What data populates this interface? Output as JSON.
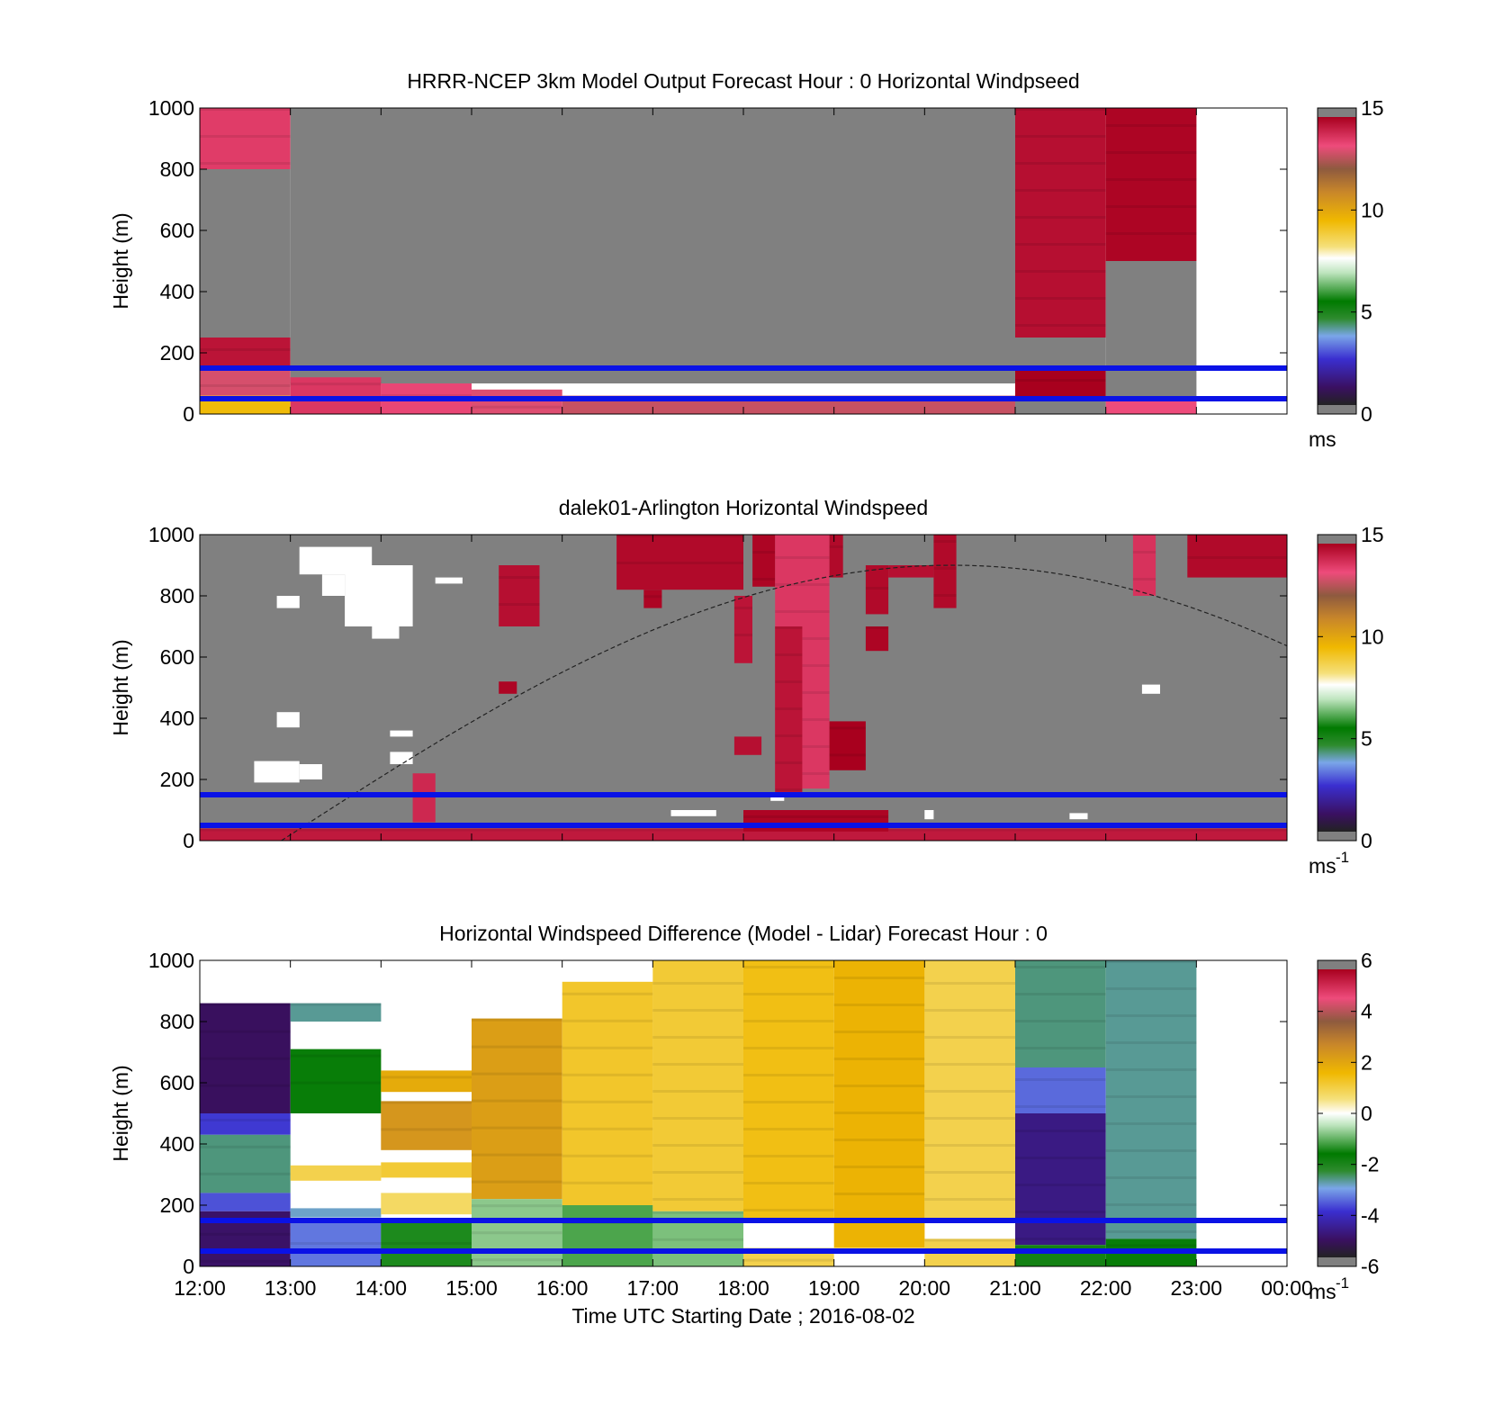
{
  "chart_data": [
    {
      "type": "heatmap",
      "title": "HRRR-NCEP 3km Model Output   Forecast Hour : 0 Horizontal Windpseed",
      "ylabel": "Height (m)",
      "xlabel": "",
      "ylim": [
        0,
        1000
      ],
      "yticks": [
        "0",
        "200",
        "400",
        "600",
        "800",
        "1000"
      ],
      "xlim_hours": [
        12,
        24
      ],
      "colorbar": {
        "min": 0,
        "max": 15,
        "ticks": [
          "0",
          "5",
          "10",
          "15"
        ],
        "unit": "ms",
        "unit_sup": "",
        "palette": "speed"
      },
      "reference_lines_m": [
        150,
        50
      ],
      "blocks": [
        {
          "x0": 12,
          "x1": 13,
          "y0": 800,
          "y1": 1000,
          "v": 13.8
        },
        {
          "x0": 12,
          "x1": 13,
          "y0": 250,
          "y1": 800,
          "v": null
        },
        {
          "x0": 12,
          "x1": 13,
          "y0": 150,
          "y1": 250,
          "v": 14.6
        },
        {
          "x0": 12,
          "x1": 13,
          "y0": 60,
          "y1": 150,
          "v": 13.2
        },
        {
          "x0": 12,
          "x1": 13,
          "y0": 0,
          "y1": 60,
          "v": 9.5
        },
        {
          "x0": 13,
          "x1": 21,
          "y0": 100,
          "y1": 1000,
          "v": null
        },
        {
          "x0": 13,
          "x1": 14,
          "y0": 0,
          "y1": 120,
          "v": 13.9
        },
        {
          "x0": 14,
          "x1": 15,
          "y0": 0,
          "y1": 100,
          "v": 13.6
        },
        {
          "x0": 15,
          "x1": 16,
          "y0": 0,
          "y1": 80,
          "v": 13.3
        },
        {
          "x0": 16,
          "x1": 21,
          "y0": 0,
          "y1": 60,
          "v": 13.0
        },
        {
          "x0": 21,
          "x1": 22,
          "y0": 250,
          "y1": 1000,
          "v": 14.7
        },
        {
          "x0": 21,
          "x1": 22,
          "y0": 0,
          "y1": 250,
          "v": null
        },
        {
          "x0": 21,
          "x1": 22,
          "y0": 50,
          "y1": 150,
          "v": 15
        },
        {
          "x0": 22,
          "x1": 23,
          "y0": 500,
          "y1": 1000,
          "v": 14.9
        },
        {
          "x0": 22,
          "x1": 23,
          "y0": 0,
          "y1": 500,
          "v": null
        },
        {
          "x0": 22,
          "x1": 23,
          "y0": 0,
          "y1": 50,
          "v": 13.5
        }
      ]
    },
    {
      "type": "heatmap",
      "title": "dalek01-Arlington  Horizontal Windspeed",
      "ylabel": "Height (m)",
      "xlabel": "",
      "ylim": [
        0,
        1000
      ],
      "yticks": [
        "0",
        "200",
        "400",
        "600",
        "800",
        "1000"
      ],
      "xlim_hours": [
        12,
        24
      ],
      "colorbar": {
        "min": 0,
        "max": 15,
        "ticks": [
          "0",
          "5",
          "10",
          "15"
        ],
        "unit": "ms",
        "unit_sup": "-1",
        "palette": "speed"
      },
      "reference_lines_m": [
        150,
        50
      ],
      "background": "gray",
      "curve": {
        "start_hour": 12.9,
        "peak_hour": 20.3,
        "peak_m": 900,
        "end_hour": 24,
        "end_m": 595
      },
      "blocks": [
        {
          "x0": 12.0,
          "x1": 24.0,
          "y0": 0,
          "y1": 40,
          "v": 14.5
        },
        {
          "x0": 12.6,
          "x1": 13.1,
          "y0": 190,
          "y1": 260,
          "v": -1
        },
        {
          "x0": 13.1,
          "x1": 13.35,
          "y0": 200,
          "y1": 250,
          "v": -1
        },
        {
          "x0": 12.85,
          "x1": 13.1,
          "y0": 370,
          "y1": 420,
          "v": -1
        },
        {
          "x0": 12.85,
          "x1": 13.1,
          "y0": 760,
          "y1": 800,
          "v": -1
        },
        {
          "x0": 13.1,
          "x1": 13.9,
          "y0": 870,
          "y1": 960,
          "v": -1
        },
        {
          "x0": 13.35,
          "x1": 13.6,
          "y0": 800,
          "y1": 870,
          "v": -1
        },
        {
          "x0": 13.6,
          "x1": 14.35,
          "y0": 700,
          "y1": 900,
          "v": -1
        },
        {
          "x0": 13.9,
          "x1": 14.2,
          "y0": 660,
          "y1": 700,
          "v": -1
        },
        {
          "x0": 14.1,
          "x1": 14.35,
          "y0": 250,
          "y1": 290,
          "v": -1
        },
        {
          "x0": 14.1,
          "x1": 14.35,
          "y0": 340,
          "y1": 360,
          "v": -1
        },
        {
          "x0": 14.6,
          "x1": 14.9,
          "y0": 840,
          "y1": 860,
          "v": -1
        },
        {
          "x0": 15.3,
          "x1": 15.75,
          "y0": 700,
          "y1": 900,
          "v": 14.7
        },
        {
          "x0": 15.3,
          "x1": 15.5,
          "y0": 480,
          "y1": 520,
          "v": 14.9
        },
        {
          "x0": 14.35,
          "x1": 14.6,
          "y0": 60,
          "y1": 220,
          "v": 14.2
        },
        {
          "x0": 16.6,
          "x1": 18.0,
          "y0": 820,
          "y1": 1000,
          "v": 14.8
        },
        {
          "x0": 16.9,
          "x1": 17.1,
          "y0": 760,
          "y1": 820,
          "v": 14.9
        },
        {
          "x0": 17.9,
          "x1": 18.1,
          "y0": 580,
          "y1": 800,
          "v": 14.6
        },
        {
          "x0": 18.1,
          "x1": 18.35,
          "y0": 830,
          "y1": 1000,
          "v": 14.9
        },
        {
          "x0": 18.35,
          "x1": 18.95,
          "y0": 170,
          "y1": 1000,
          "v": 13.9
        },
        {
          "x0": 18.35,
          "x1": 18.65,
          "y0": 150,
          "y1": 700,
          "v": 14.6
        },
        {
          "x0": 18.95,
          "x1": 19.35,
          "y0": 230,
          "y1": 390,
          "v": 15
        },
        {
          "x0": 18.95,
          "x1": 19.1,
          "y0": 860,
          "y1": 1000,
          "v": 14.8
        },
        {
          "x0": 17.9,
          "x1": 18.2,
          "y0": 280,
          "y1": 340,
          "v": 14.7
        },
        {
          "x0": 19.35,
          "x1": 19.6,
          "y0": 740,
          "y1": 900,
          "v": 14.8
        },
        {
          "x0": 19.35,
          "x1": 19.6,
          "y0": 620,
          "y1": 700,
          "v": 14.9
        },
        {
          "x0": 20.1,
          "x1": 20.35,
          "y0": 760,
          "y1": 1000,
          "v": 14.8
        },
        {
          "x0": 19.6,
          "x1": 20.1,
          "y0": 860,
          "y1": 900,
          "v": 14.7
        },
        {
          "x0": 22.3,
          "x1": 22.55,
          "y0": 800,
          "y1": 1000,
          "v": 14.0
        },
        {
          "x0": 22.9,
          "x1": 24.0,
          "y0": 860,
          "y1": 1000,
          "v": 14.8
        },
        {
          "x0": 22.4,
          "x1": 22.6,
          "y0": 480,
          "y1": 510,
          "v": -1
        },
        {
          "x0": 18.0,
          "x1": 19.6,
          "y0": 30,
          "y1": 100,
          "v": 14.9
        },
        {
          "x0": 18.3,
          "x1": 18.45,
          "y0": 130,
          "y1": 150,
          "v": -1
        },
        {
          "x0": 17.2,
          "x1": 17.7,
          "y0": 80,
          "y1": 100,
          "v": -1
        },
        {
          "x0": 21.6,
          "x1": 21.8,
          "y0": 70,
          "y1": 90,
          "v": -1
        },
        {
          "x0": 20.0,
          "x1": 20.1,
          "y0": 70,
          "y1": 100,
          "v": -1
        }
      ]
    },
    {
      "type": "heatmap",
      "title": "Horizontal Windspeed Difference (Model - Lidar) Forecast Hour : 0",
      "ylabel": "Height (m)",
      "xlabel": "Time UTC  Starting Date ; 2016-08-02",
      "ylim": [
        0,
        1000
      ],
      "yticks": [
        "0",
        "200",
        "400",
        "600",
        "800",
        "1000"
      ],
      "xlim_hours": [
        12,
        24
      ],
      "xticks": [
        "12:00",
        "13:00",
        "14:00",
        "15:00",
        "16:00",
        "17:00",
        "18:00",
        "19:00",
        "20:00",
        "21:00",
        "22:00",
        "23:00",
        "00:00"
      ],
      "colorbar": {
        "min": -6,
        "max": 6,
        "ticks": [
          "-6",
          "-4",
          "-2",
          "0",
          "2",
          "4",
          "6"
        ],
        "unit": "ms",
        "unit_sup": "-1",
        "palette": "diff"
      },
      "reference_lines_m": [
        150,
        50
      ],
      "blocks": [
        {
          "x0": 12,
          "x1": 13,
          "y0": 500,
          "y1": 860,
          "v": -5.3
        },
        {
          "x0": 12,
          "x1": 13,
          "y0": 430,
          "y1": 500,
          "v": -4.0
        },
        {
          "x0": 12,
          "x1": 13,
          "y0": 240,
          "y1": 430,
          "v": -2.7
        },
        {
          "x0": 12,
          "x1": 13,
          "y0": 180,
          "y1": 240,
          "v": -3.8
        },
        {
          "x0": 12,
          "x1": 13,
          "y0": 0,
          "y1": 180,
          "v": -5.2
        },
        {
          "x0": 13,
          "x1": 14,
          "y0": 800,
          "y1": 860,
          "v": -2.8
        },
        {
          "x0": 13,
          "x1": 14,
          "y0": 500,
          "y1": 710,
          "v": -1.8
        },
        {
          "x0": 13,
          "x1": 14,
          "y0": 280,
          "y1": 330,
          "v": 1.0
        },
        {
          "x0": 13,
          "x1": 14,
          "y0": 160,
          "y1": 190,
          "v": -3.0
        },
        {
          "x0": 13,
          "x1": 14,
          "y0": 0,
          "y1": 150,
          "v": -3.5
        },
        {
          "x0": 14,
          "x1": 15,
          "y0": 380,
          "y1": 540,
          "v": 2.5
        },
        {
          "x0": 14,
          "x1": 15,
          "y0": 570,
          "y1": 640,
          "v": 2.0
        },
        {
          "x0": 14,
          "x1": 15,
          "y0": 290,
          "y1": 340,
          "v": 1.2
        },
        {
          "x0": 14,
          "x1": 15,
          "y0": 170,
          "y1": 240,
          "v": 0.8
        },
        {
          "x0": 14,
          "x1": 15,
          "y0": 0,
          "y1": 150,
          "v": -1.5
        },
        {
          "x0": 15,
          "x1": 16,
          "y0": 220,
          "y1": 810,
          "v": 2.3
        },
        {
          "x0": 15,
          "x1": 16,
          "y0": 0,
          "y1": 220,
          "v": -0.8
        },
        {
          "x0": 16,
          "x1": 17,
          "y0": 200,
          "y1": 930,
          "v": 1.3
        },
        {
          "x0": 16,
          "x1": 17,
          "y0": 0,
          "y1": 200,
          "v": -1.2
        },
        {
          "x0": 17,
          "x1": 18,
          "y0": 180,
          "y1": 1000,
          "v": 1.2
        },
        {
          "x0": 17,
          "x1": 18,
          "y0": 0,
          "y1": 180,
          "v": -0.9
        },
        {
          "x0": 18,
          "x1": 19,
          "y0": 150,
          "y1": 1000,
          "v": 1.5
        },
        {
          "x0": 18,
          "x1": 19,
          "y0": 0,
          "y1": 60,
          "v": 1.0
        },
        {
          "x0": 19,
          "x1": 20,
          "y0": 60,
          "y1": 1000,
          "v": 1.8
        },
        {
          "x0": 20,
          "x1": 21,
          "y0": 150,
          "y1": 1000,
          "v": 1.0
        },
        {
          "x0": 20,
          "x1": 21,
          "y0": 0,
          "y1": 90,
          "v": 1.0
        },
        {
          "x0": 21,
          "x1": 22,
          "y0": 650,
          "y1": 1000,
          "v": -2.7
        },
        {
          "x0": 21,
          "x1": 22,
          "y0": 500,
          "y1": 650,
          "v": -3.6
        },
        {
          "x0": 21,
          "x1": 22,
          "y0": 70,
          "y1": 500,
          "v": -4.9
        },
        {
          "x0": 21,
          "x1": 22,
          "y0": 0,
          "y1": 70,
          "v": -2.0
        },
        {
          "x0": 22,
          "x1": 23,
          "y0": 90,
          "y1": 1000,
          "v": -2.8
        },
        {
          "x0": 22,
          "x1": 23,
          "y0": 0,
          "y1": 90,
          "v": -1.8
        }
      ]
    }
  ]
}
